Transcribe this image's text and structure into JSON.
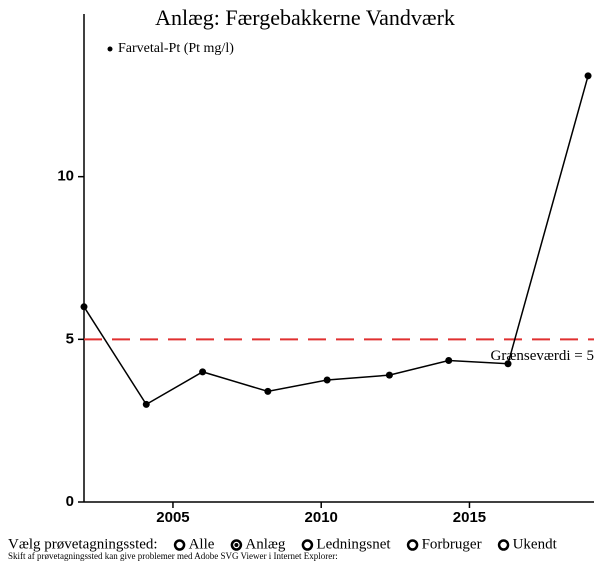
{
  "chart_data": {
    "type": "line",
    "title": "Anlæg: Færgebakkerne Vandværk",
    "x": [
      2002.0,
      2004.1,
      2006.0,
      2008.2,
      2010.2,
      2012.3,
      2014.3,
      2016.3,
      2019.0
    ],
    "series": [
      {
        "name": "Farvetal-Pt (Pt mg/l)",
        "color": "#000000",
        "values": [
          6.0,
          3.0,
          4.0,
          3.4,
          3.75,
          3.9,
          4.35,
          4.25,
          13.1
        ]
      }
    ],
    "xlim": [
      2002,
      2019.2
    ],
    "ylim": [
      0,
      15
    ],
    "xticks": [
      2005,
      2010,
      2015
    ],
    "yticks": [
      0,
      5,
      10
    ],
    "threshold": {
      "value": 5,
      "label": "Grænseværdi = 5",
      "color": "#e03030"
    }
  },
  "controls": {
    "label": "Vælg prøvetagningssted:",
    "options": [
      "Alle",
      "Anlæg",
      "Ledningsnet",
      "Forbruger",
      "Ukendt"
    ],
    "selected": 1,
    "note": "Skift af prøvetagningssted kan give problemer med Adobe SVG Viewer i Internet Explorer:"
  }
}
